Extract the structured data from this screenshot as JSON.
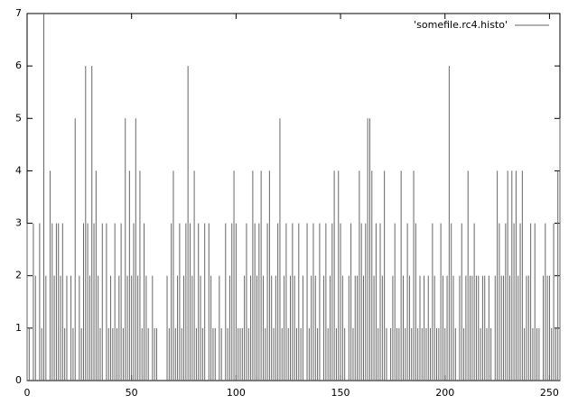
{
  "chart_data": {
    "type": "impulse",
    "x": [
      0,
      1,
      2,
      3,
      4,
      5,
      6,
      7,
      8,
      9,
      10,
      11,
      12,
      13,
      14,
      15,
      16,
      17,
      18,
      19,
      20,
      21,
      22,
      23,
      24,
      25,
      26,
      27,
      28,
      29,
      30,
      31,
      32,
      33,
      34,
      35,
      36,
      37,
      38,
      39,
      40,
      41,
      42,
      43,
      44,
      45,
      46,
      47,
      48,
      49,
      50,
      51,
      52,
      53,
      54,
      55,
      56,
      57,
      58,
      59,
      60,
      61,
      62,
      63,
      64,
      65,
      66,
      67,
      68,
      69,
      70,
      71,
      72,
      73,
      74,
      75,
      76,
      77,
      78,
      79,
      80,
      81,
      82,
      83,
      84,
      85,
      86,
      87,
      88,
      89,
      90,
      91,
      92,
      93,
      94,
      95,
      96,
      97,
      98,
      99,
      100,
      101,
      102,
      103,
      104,
      105,
      106,
      107,
      108,
      109,
      110,
      111,
      112,
      113,
      114,
      115,
      116,
      117,
      118,
      119,
      120,
      121,
      122,
      123,
      124,
      125,
      126,
      127,
      128,
      129,
      130,
      131,
      132,
      133,
      134,
      135,
      136,
      137,
      138,
      139,
      140,
      141,
      142,
      143,
      144,
      145,
      146,
      147,
      148,
      149,
      150,
      151,
      152,
      153,
      154,
      155,
      156,
      157,
      158,
      159,
      160,
      161,
      162,
      163,
      164,
      165,
      166,
      167,
      168,
      169,
      170,
      171,
      172,
      173,
      174,
      175,
      176,
      177,
      178,
      179,
      180,
      181,
      182,
      183,
      184,
      185,
      186,
      187,
      188,
      189,
      190,
      191,
      192,
      193,
      194,
      195,
      196,
      197,
      198,
      199,
      200,
      201,
      202,
      203,
      204,
      205,
      206,
      207,
      208,
      209,
      210,
      211,
      212,
      213,
      214,
      215,
      216,
      217,
      218,
      219,
      220,
      221,
      222,
      223,
      224,
      225,
      226,
      227,
      228,
      229,
      230,
      231,
      232,
      233,
      234,
      235,
      236,
      237,
      238,
      239,
      240,
      241,
      242,
      243,
      244,
      245,
      246,
      247,
      248,
      249,
      250,
      251,
      252,
      253,
      254,
      255
    ],
    "series": [
      {
        "name": "'somefile.rc4.histo'",
        "color": "#666666",
        "values": [
          3,
          1,
          0,
          3,
          2,
          0,
          3,
          1,
          7,
          2,
          0,
          4,
          3,
          2,
          3,
          3,
          2,
          3,
          1,
          2,
          0,
          2,
          1,
          5,
          0,
          2,
          1,
          3,
          6,
          3,
          2,
          6,
          3,
          4,
          2,
          1,
          3,
          0,
          3,
          1,
          2,
          1,
          3,
          1,
          2,
          3,
          1,
          5,
          2,
          4,
          2,
          3,
          5,
          2,
          4,
          1,
          3,
          2,
          1,
          0,
          2,
          1,
          1,
          0,
          0,
          0,
          0,
          2,
          1,
          3,
          4,
          1,
          2,
          3,
          1,
          2,
          3,
          6,
          3,
          2,
          4,
          1,
          3,
          2,
          1,
          3,
          0,
          3,
          2,
          1,
          1,
          0,
          2,
          1,
          0,
          3,
          1,
          2,
          3,
          4,
          3,
          1,
          1,
          1,
          2,
          3,
          1,
          2,
          4,
          3,
          2,
          3,
          4,
          2,
          1,
          3,
          4,
          2,
          1,
          2,
          3,
          5,
          1,
          2,
          3,
          1,
          2,
          3,
          2,
          1,
          3,
          1,
          2,
          0,
          3,
          1,
          2,
          3,
          2,
          1,
          3,
          0,
          2,
          3,
          1,
          2,
          3,
          4,
          1,
          4,
          3,
          2,
          1,
          0,
          2,
          3,
          1,
          2,
          2,
          4,
          3,
          2,
          3,
          5,
          5,
          4,
          2,
          3,
          1,
          3,
          2,
          4,
          1,
          0,
          1,
          2,
          3,
          1,
          1,
          4,
          2,
          1,
          3,
          2,
          1,
          4,
          3,
          1,
          2,
          1,
          2,
          1,
          2,
          1,
          3,
          2,
          1,
          1,
          3,
          2,
          1,
          2,
          6,
          3,
          2,
          1,
          0,
          2,
          3,
          1,
          2,
          4,
          2,
          2,
          3,
          2,
          2,
          1,
          2,
          2,
          1,
          2,
          1,
          0,
          2,
          4,
          3,
          2,
          2,
          3,
          4,
          2,
          4,
          3,
          4,
          2,
          3,
          4,
          1,
          2,
          2,
          3,
          1,
          3,
          1,
          1,
          0,
          2,
          3,
          2,
          2,
          1,
          3,
          1,
          4,
          5
        ]
      }
    ],
    "xlim": [
      0,
      255
    ],
    "ylim": [
      0,
      7
    ],
    "xticks": [
      0,
      50,
      100,
      150,
      200,
      250
    ],
    "yticks": [
      0,
      1,
      2,
      3,
      4,
      5,
      6,
      7
    ],
    "legend": "top-right"
  }
}
